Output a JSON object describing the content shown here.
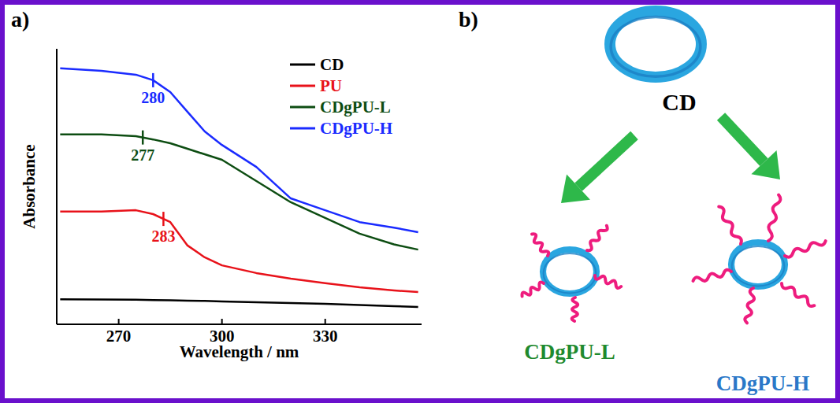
{
  "chart_data": {
    "type": "line",
    "panel_label": "a)",
    "x_label": "Wavelength / nm",
    "y_label": "Absorbance",
    "x": [
      253,
      265,
      275,
      280,
      285,
      290,
      295,
      300,
      310,
      320,
      330,
      340,
      350,
      357
    ],
    "series": [
      {
        "name": "CD",
        "color": "#000000",
        "values": [
          0.091,
          0.09,
          0.089,
          0.088,
          0.087,
          0.086,
          0.085,
          0.083,
          0.08,
          0.077,
          0.074,
          0.07,
          0.066,
          0.063
        ]
      },
      {
        "name": "PU",
        "color": "#e8121a",
        "values": [
          0.409,
          0.409,
          0.414,
          0.4,
          0.371,
          0.286,
          0.243,
          0.214,
          0.186,
          0.166,
          0.149,
          0.134,
          0.123,
          0.117
        ]
      },
      {
        "name": "CDgPU-L",
        "color": "#0d4d12",
        "values": [
          0.689,
          0.689,
          0.683,
          0.671,
          0.657,
          0.637,
          0.617,
          0.597,
          0.52,
          0.443,
          0.386,
          0.329,
          0.29,
          0.271
        ]
      },
      {
        "name": "CDgPU-H",
        "color": "#1a2bff",
        "values": [
          0.929,
          0.92,
          0.906,
          0.886,
          0.843,
          0.771,
          0.7,
          0.651,
          0.571,
          0.457,
          0.414,
          0.371,
          0.351,
          0.334
        ]
      }
    ],
    "annotations": [
      {
        "series": "PU",
        "x": 283,
        "text": "283"
      },
      {
        "series": "CDgPU-L",
        "x": 277,
        "text": "277"
      },
      {
        "series": "CDgPU-H",
        "x": 280,
        "text": "280"
      }
    ],
    "xlim": [
      252,
      358
    ],
    "xticks": [
      270,
      300,
      330
    ],
    "ylim": [
      0,
      1
    ],
    "tick_labels": "x",
    "legend": "upper right",
    "grid": false
  },
  "diagram": {
    "panel_label": "b)",
    "center": "CD",
    "products": [
      "CDgPU-L",
      "CDgPU-H"
    ]
  }
}
